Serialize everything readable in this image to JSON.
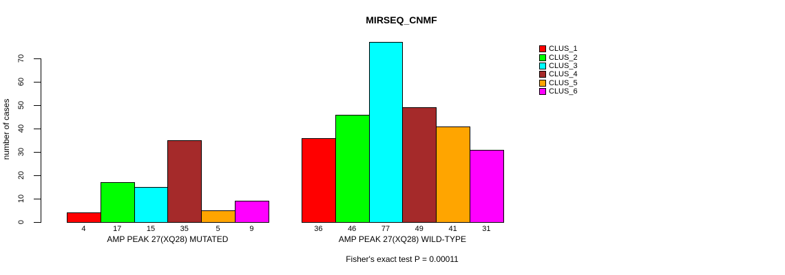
{
  "chart_data": {
    "type": "bar",
    "title": "MIRSEQ_CNMF",
    "ylabel": "number of cases",
    "xlabel": "",
    "ylim": [
      0,
      70
    ],
    "yticks": [
      0,
      10,
      20,
      30,
      40,
      50,
      60,
      70
    ],
    "grid": false,
    "legend_position": "right",
    "series_colors": [
      "#FF0000",
      "#00FF00",
      "#00FFFF",
      "#A52A2A",
      "#FFA500",
      "#FF00FF"
    ],
    "legend": [
      {
        "label": "CLUS_1",
        "color": "#FF0000"
      },
      {
        "label": "CLUS_2",
        "color": "#00FF00"
      },
      {
        "label": "CLUS_3",
        "color": "#00FFFF"
      },
      {
        "label": "CLUS_4",
        "color": "#A52A2A"
      },
      {
        "label": "CLUS_5",
        "color": "#FFA500"
      },
      {
        "label": "CLUS_6",
        "color": "#FF00FF"
      }
    ],
    "groups": [
      {
        "label": "AMP PEAK 27(XQ28) MUTATED",
        "values": [
          4,
          17,
          15,
          35,
          5,
          9
        ]
      },
      {
        "label": "AMP PEAK 27(XQ28) WILD-TYPE",
        "values": [
          36,
          46,
          77,
          49,
          41,
          31
        ]
      }
    ],
    "footnote": "Fisher's exact test P = 0.00011",
    "axis_color": "#000000",
    "background_color": "#FFFFFF"
  }
}
